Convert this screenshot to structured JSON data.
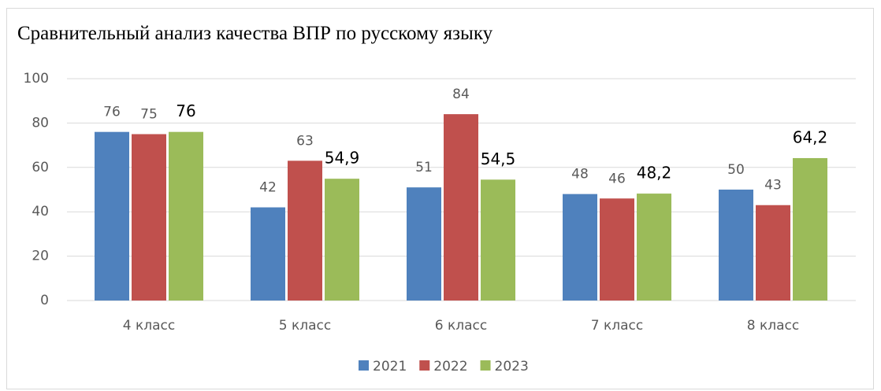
{
  "chart_data": {
    "type": "bar",
    "title": "Сравнительный анализ качества ВПР по русскому языку",
    "categories": [
      "4 класс",
      "5 класс",
      "6 класс",
      "7 класс",
      "8 класс"
    ],
    "series": [
      {
        "name": "2021",
        "color": "#4f81bd",
        "values": [
          76,
          42,
          51,
          48,
          50
        ]
      },
      {
        "name": "2022",
        "color": "#c0504d",
        "values": [
          75,
          63,
          84,
          46,
          43
        ]
      },
      {
        "name": "2023",
        "color": "#9bbb59",
        "values": [
          76,
          54.9,
          54.5,
          48.2,
          64.2
        ],
        "value_labels": [
          "76",
          "54,9",
          "54,5",
          "48,2",
          "64,2"
        ]
      }
    ],
    "ylim": [
      0,
      100
    ],
    "yticks": [
      0,
      20,
      40,
      60,
      80,
      100
    ],
    "grid": true,
    "legend": "bottom"
  }
}
